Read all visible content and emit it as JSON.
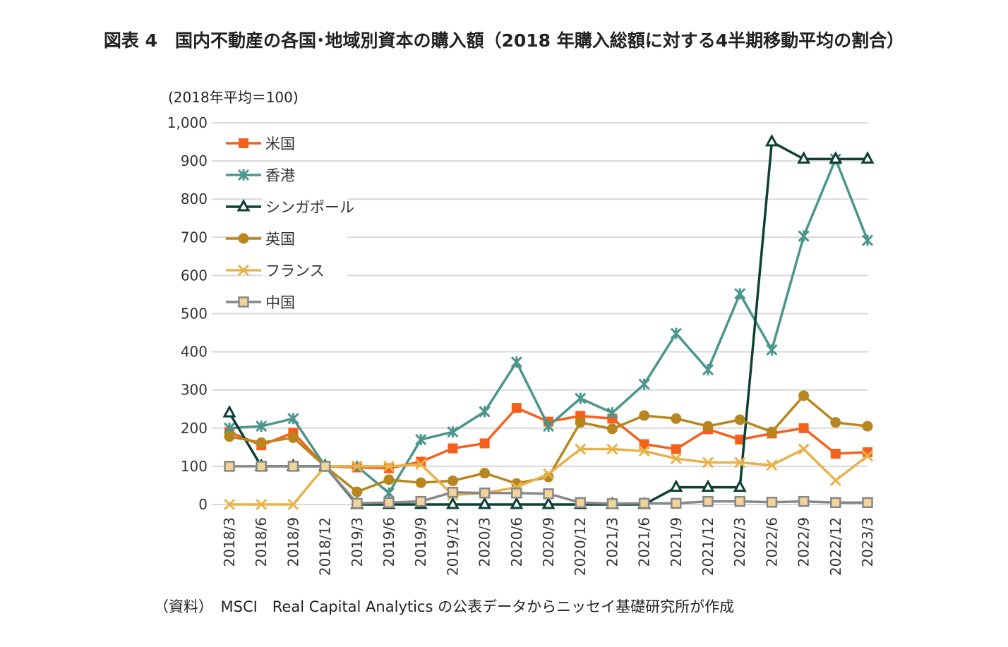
{
  "chart_data": {
    "type": "line",
    "title": "図表 4　国内不動産の各国･地域別資本の購入額（2018 年購入総額に対する4半期移動平均の割合）",
    "ylabel": "(2018年平均＝100)",
    "xlabel": "",
    "ylim": [
      0,
      1000
    ],
    "yticks": [
      "0",
      "100",
      "200",
      "300",
      "400",
      "500",
      "600",
      "700",
      "800",
      "900",
      "1,000"
    ],
    "grid": true,
    "legend_position": "top-left",
    "categories": [
      "2018/3",
      "2018/6",
      "2018/9",
      "2018/12",
      "2019/3",
      "2019/6",
      "2019/9",
      "2019/12",
      "2020/3",
      "2020/6",
      "2020/9",
      "2020/12",
      "2021/3",
      "2021/6",
      "2021/9",
      "2021/12",
      "2022/3",
      "2022/6",
      "2022/9",
      "2022/12",
      "2023/3"
    ],
    "series": [
      {
        "name": "米国",
        "color": "#f4601c",
        "marker": "square",
        "values": [
          190,
          155,
          188,
          100,
          97,
          95,
          112,
          147,
          160,
          253,
          217,
          232,
          225,
          158,
          145,
          197,
          170,
          186,
          200,
          133,
          137
        ]
      },
      {
        "name": "香港",
        "color": "#4a968c",
        "marker": "asterisk",
        "values": [
          200,
          205,
          225,
          100,
          100,
          30,
          170,
          190,
          243,
          373,
          205,
          278,
          240,
          315,
          448,
          353,
          552,
          405,
          703,
          905,
          692
        ]
      },
      {
        "name": "シンガポール",
        "color": "#0f4034",
        "marker": "triangle",
        "values": [
          240,
          100,
          100,
          100,
          0,
          0,
          0,
          0,
          0,
          0,
          0,
          0,
          0,
          0,
          45,
          45,
          45,
          950,
          905,
          905,
          905
        ]
      },
      {
        "name": "英国",
        "color": "#b8861e",
        "marker": "circle",
        "values": [
          178,
          162,
          175,
          100,
          33,
          65,
          57,
          62,
          82,
          55,
          72,
          215,
          198,
          233,
          225,
          205,
          222,
          190,
          285,
          215,
          205
        ]
      },
      {
        "name": "フランス",
        "color": "#e8b24a",
        "marker": "x",
        "values": [
          0,
          0,
          0,
          100,
          100,
          100,
          105,
          25,
          30,
          45,
          80,
          145,
          145,
          140,
          120,
          110,
          110,
          103,
          145,
          63,
          127
        ]
      },
      {
        "name": "中国",
        "color": "#888888",
        "marker": "square-open",
        "fill": "#f2d49a",
        "values": [
          100,
          100,
          100,
          100,
          3,
          5,
          8,
          32,
          30,
          30,
          28,
          5,
          2,
          3,
          3,
          8,
          8,
          6,
          8,
          5,
          5
        ]
      }
    ]
  },
  "source": "（資料）　MSCI　Real Capital Analytics の公表データからニッセイ基礎研究所が作成"
}
